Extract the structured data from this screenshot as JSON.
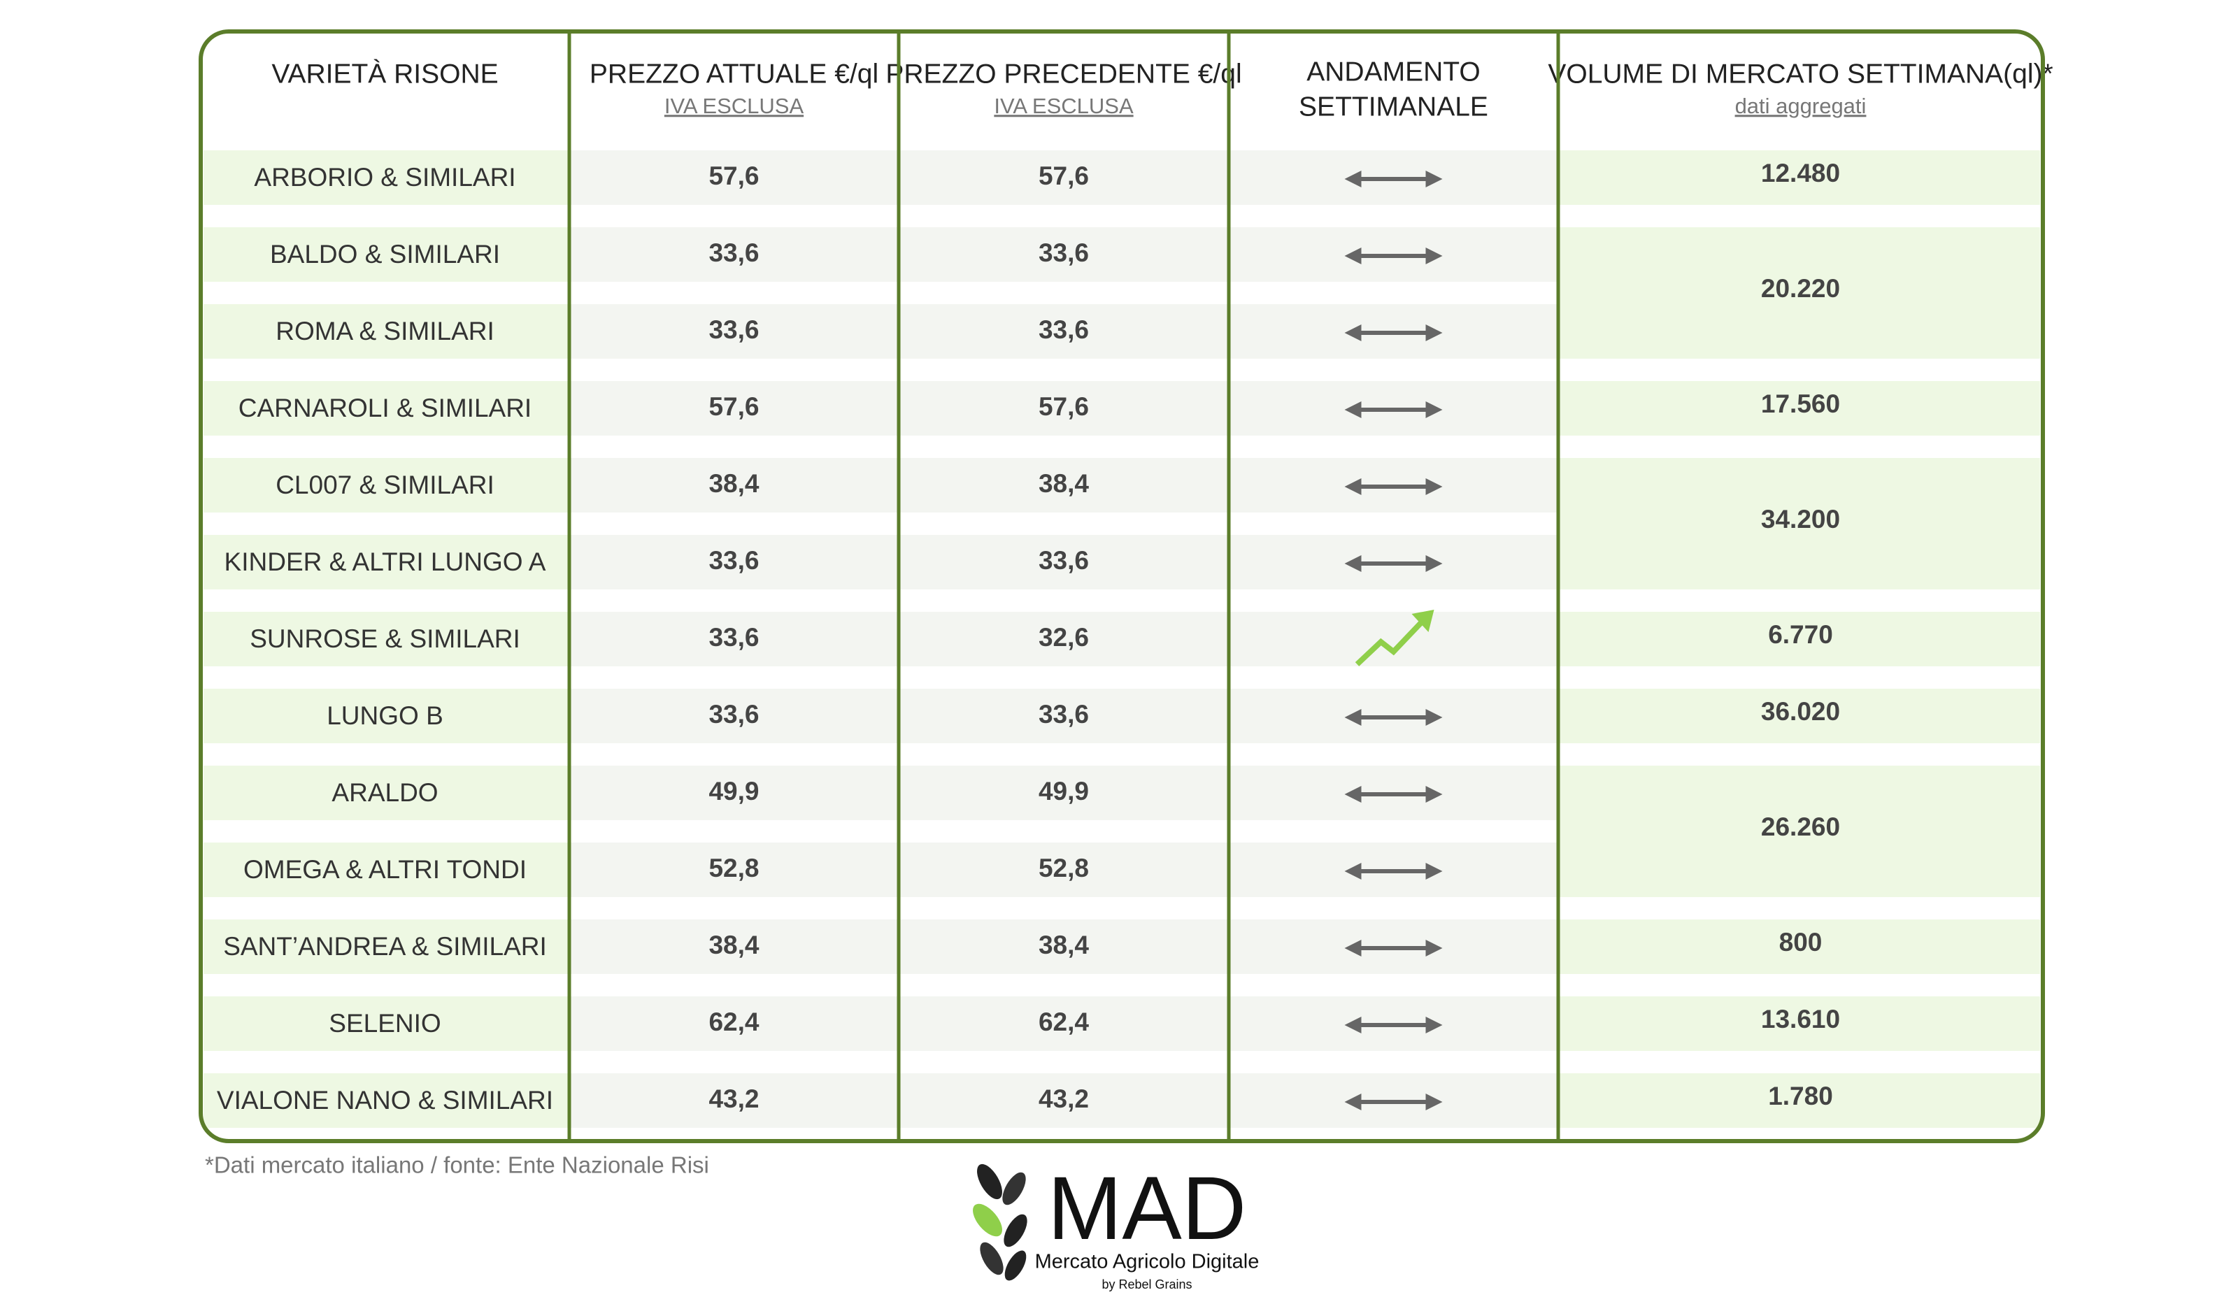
{
  "header": {
    "columns": [
      {
        "lines": [
          "VARIETÀ RISONE"
        ]
      },
      {
        "lines": [
          "PREZZO ATTUALE €/ql"
        ],
        "subtitle": "IVA ESCLUSA"
      },
      {
        "lines": [
          "PREZZO PRECEDENTE €/ql"
        ],
        "subtitle": "IVA ESCLUSA"
      },
      {
        "lines": [
          "ANDAMENTO",
          "SETTIMANALE"
        ]
      },
      {
        "lines": [
          "VOLUME DI MERCATO SETTIMANA(ql)*"
        ],
        "subtitle": "dati aggregati"
      }
    ]
  },
  "table": {
    "rows": [
      {
        "variety": "ARBORIO & SIMILARI",
        "current": "57,6",
        "previous": "57,6"
      },
      {
        "variety": "BALDO & SIMILARI",
        "current": "33,6",
        "previous": "33,6"
      },
      {
        "variety": "ROMA & SIMILARI",
        "current": "33,6",
        "previous": "33,6"
      },
      {
        "variety": "CARNAROLI & SIMILARI",
        "current": "57,6",
        "previous": "57,6"
      },
      {
        "variety": "CL007 & SIMILARI",
        "current": "38,4",
        "previous": "38,4"
      },
      {
        "variety": "KINDER & ALTRI LUNGO A",
        "current": "33,6",
        "previous": "33,6"
      },
      {
        "variety": "SUNROSE & SIMILARI",
        "current": "33,6",
        "previous": "32,6"
      },
      {
        "variety": "LUNGO B",
        "current": "33,6",
        "previous": "33,6"
      },
      {
        "variety": "ARALDO",
        "current": "49,9",
        "previous": "49,9"
      },
      {
        "variety": "OMEGA & ALTRI TONDI",
        "current": "52,8",
        "previous": "52,8"
      },
      {
        "variety": "SANT’ANDREA & SIMILARI",
        "current": "38,4",
        "previous": "38,4"
      },
      {
        "variety": "SELENIO",
        "current": "62,4",
        "previous": "62,4"
      },
      {
        "variety": "VIALONE NANO & SIMILARI",
        "current": "43,2",
        "previous": "43,2"
      }
    ],
    "volumes": [
      "12.480",
      "20.220",
      "17.560",
      "34.200",
      "6.770",
      "36.020",
      "26.260",
      "800",
      "13.610",
      "1.780"
    ]
  },
  "footnote": "*Dati mercato italiano / fonte: Ente Nazionale Risi",
  "logo": {
    "title": "MAD",
    "subtitle": "Mercato Agricolo Digitale",
    "byline": "by Rebel Grains"
  }
}
